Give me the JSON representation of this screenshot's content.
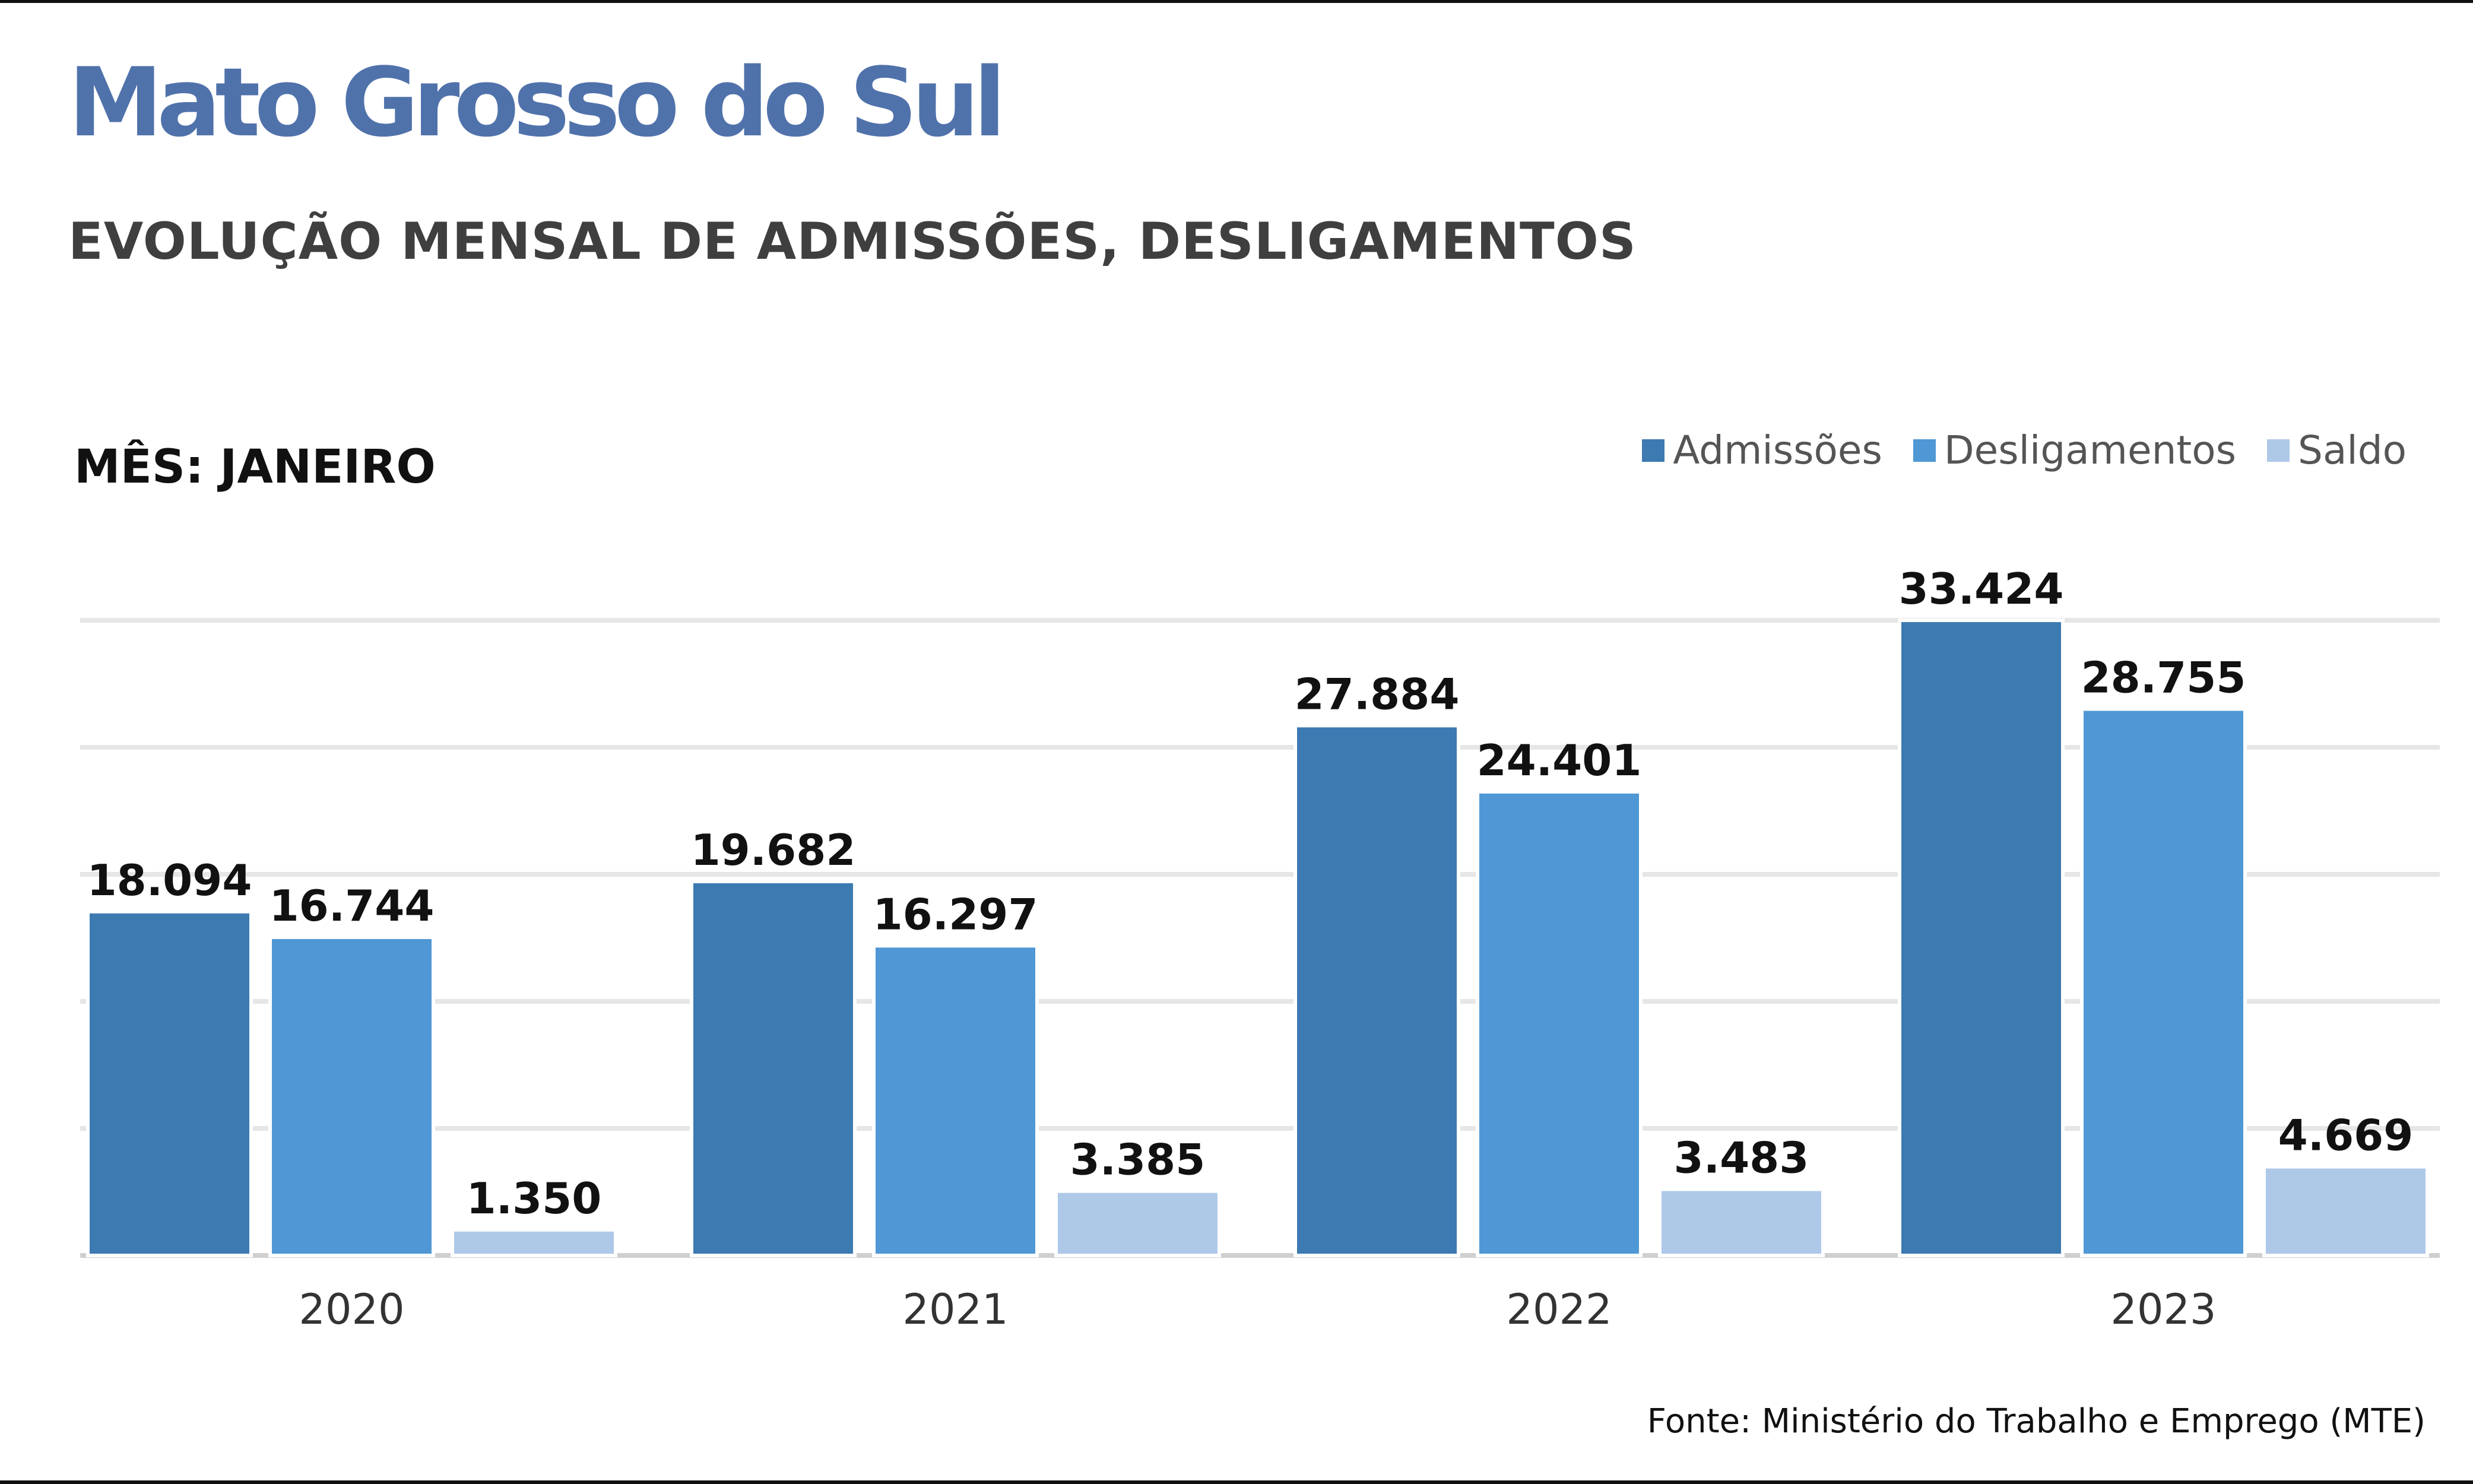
{
  "header": {
    "title": "Mato Grosso do Sul",
    "subtitle": "EVOLUÇÃO MENSAL DE ADMISSÕES, DESLIGAMENTOS",
    "month_label": "MÊS: JANEIRO"
  },
  "source": "Fonte: Ministério do Trabalho e Emprego (MTE)",
  "colors": {
    "admissoes": "#3d7ab2",
    "desligamentos": "#4f98d5",
    "saldo": "#aec8e8",
    "title": "#5072ab",
    "gridline": "#e6e6e6",
    "baseline": "#cfcfcf"
  },
  "chart_data": {
    "type": "bar",
    "categories": [
      "2020",
      "2021",
      "2022",
      "2023"
    ],
    "series": [
      {
        "name": "Admissões",
        "values": [
          18094,
          19682,
          27884,
          33424
        ],
        "labels": [
          "18.094",
          "19.682",
          "27.884",
          "33.424"
        ]
      },
      {
        "name": "Desligamentos",
        "values": [
          16744,
          16297,
          24401,
          28755
        ],
        "labels": [
          "16.744",
          "16.297",
          "24.401",
          "28.755"
        ]
      },
      {
        "name": "Saldo",
        "values": [
          1350,
          3385,
          3483,
          4669
        ],
        "labels": [
          "1.350",
          "3.385",
          "3.483",
          "4.669"
        ]
      }
    ],
    "ylim": [
      0,
      33424
    ],
    "grid": true,
    "legend": "top-right"
  }
}
